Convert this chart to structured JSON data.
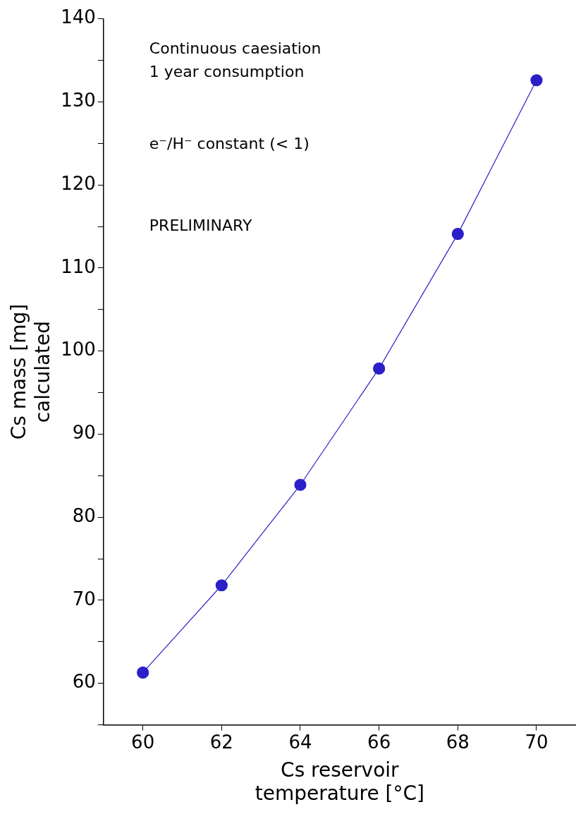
{
  "chart_data": {
    "type": "line",
    "xlabel": "Cs reservoir\ntemperature [°C]",
    "ylabel": "Cs mass [mg]\ncalculated",
    "x": [
      60,
      62,
      64,
      66,
      68,
      70
    ],
    "series": [
      {
        "color": "#2b1fc8",
        "values": [
          61.3,
          71.8,
          83.9,
          97.9,
          114.1,
          132.6
        ]
      }
    ],
    "xlim": [
      59,
      71
    ],
    "xticks": [
      60,
      62,
      64,
      66,
      68,
      70
    ],
    "ylim": [
      55,
      140
    ],
    "yticks": [
      {
        "value": 55,
        "label": null
      },
      60,
      {
        "value": 65,
        "label": null
      },
      70,
      {
        "value": 75,
        "label": null
      },
      80,
      {
        "value": 85,
        "label": null
      },
      90,
      {
        "value": 95,
        "label": null
      },
      100,
      {
        "value": 105,
        "label": null
      },
      110,
      {
        "value": 115,
        "label": null
      },
      120,
      {
        "value": 125,
        "label": null
      },
      130,
      {
        "value": 135,
        "label": null
      },
      140
    ],
    "annotations": [
      "Continuous caesiation",
      "1 year consumption",
      "e⁻/H⁻ constant (< 1)",
      "PRELIMINARY"
    ],
    "marker": "circle",
    "line_style": "solid",
    "grid": false,
    "legend": false
  }
}
